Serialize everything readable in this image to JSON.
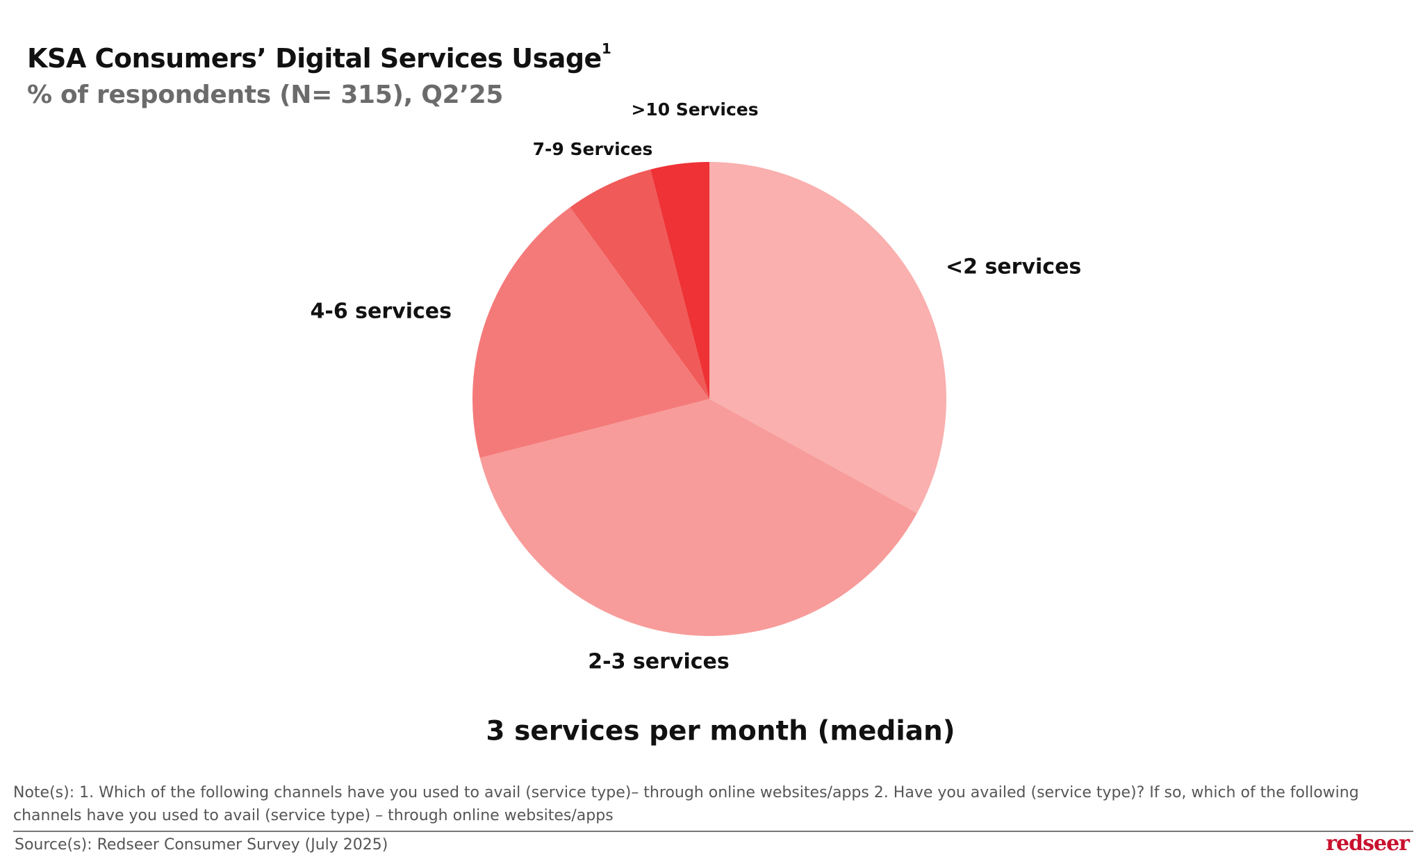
{
  "chart_data": {
    "type": "pie",
    "title": "KSA Consumers’ Digital Services Usage",
    "title_superscript": "1",
    "subtitle": "% of respondents (N= 315), Q2’25",
    "categories": [
      "<2 services",
      "2-3 services",
      "4-6 services",
      "7-9 Services",
      ">10 Services"
    ],
    "values": [
      33,
      38,
      19,
      6,
      4
    ],
    "colors": [
      "#f9b0ae",
      "#f79c9a",
      "#f47a79",
      "#f05a59",
      "#ee3235"
    ],
    "annotation": "3 services per month (median)",
    "note": "Note(s): 1. Which of the following channels have you used to avail (service type)– through online websites/apps 2. Have you availed (service type)? If so, which of the following channels have you used to avail (service type) – through online websites/apps",
    "source": "Source(s): Redseer Consumer Survey (July 2025)",
    "brand": "redseer"
  }
}
